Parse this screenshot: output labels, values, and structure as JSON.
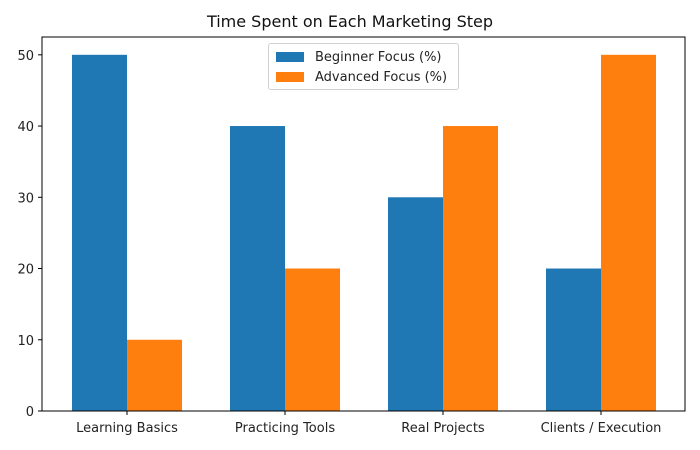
{
  "chart_data": {
    "type": "bar",
    "title": "Time Spent on Each Marketing Step",
    "xlabel": "",
    "ylabel": "",
    "categories": [
      "Learning Basics",
      "Practicing Tools",
      "Real Projects",
      "Clients / Execution"
    ],
    "series": [
      {
        "name": "Beginner Focus (%)",
        "values": [
          50,
          40,
          30,
          20
        ],
        "color": "#1f77b4"
      },
      {
        "name": "Advanced Focus (%)",
        "values": [
          10,
          20,
          40,
          50
        ],
        "color": "#ff7f0e"
      }
    ],
    "ylim": [
      0,
      52.5
    ],
    "yticks": [
      0,
      10,
      20,
      30,
      40,
      50
    ],
    "grid": false,
    "legend_position": "upper center"
  },
  "legend": {
    "items": [
      {
        "label": "Beginner Focus (%)",
        "color": "#1f77b4"
      },
      {
        "label": "Advanced Focus (%)",
        "color": "#ff7f0e"
      }
    ]
  }
}
